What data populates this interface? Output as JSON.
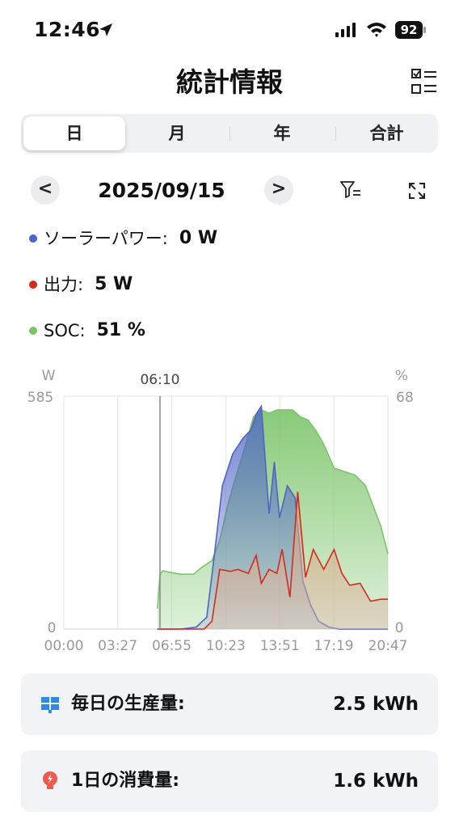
{
  "status_bar": {
    "time": "12:46",
    "battery": "92",
    "icons": [
      "location-arrow-icon",
      "cellular-signal-icon",
      "wifi-icon",
      "battery-icon"
    ]
  },
  "header": {
    "title": "統計情報",
    "action_icon": "checklist-icon"
  },
  "tabs": [
    {
      "label": "日",
      "active": true
    },
    {
      "label": "月",
      "active": false
    },
    {
      "label": "年",
      "active": false
    },
    {
      "label": "合計",
      "active": false
    }
  ],
  "date_nav": {
    "prev": "<",
    "date": "2025/09/15",
    "next": ">",
    "filter_icon": "filter-icon",
    "expand_icon": "expand-icon"
  },
  "legend": [
    {
      "label": "ソーラーパワー:",
      "value": "0 W",
      "color": "#4f63c7"
    },
    {
      "label": "出力:",
      "value": "5 W",
      "color": "#d22a1e"
    },
    {
      "label": "SOC:",
      "value": "51 %",
      "color": "#7cc46a"
    }
  ],
  "chart_data": {
    "type": "area",
    "left_axis": {
      "unit": "W",
      "max": "585",
      "min": "0",
      "range": [
        0,
        585
      ]
    },
    "right_axis": {
      "unit": "%",
      "max": "68",
      "min": "0",
      "range": [
        0,
        68
      ]
    },
    "x_ticks": [
      "00:00",
      "03:27",
      "06:55",
      "10:23",
      "13:51",
      "17:19",
      "20:47"
    ],
    "cursor_label": "06:10",
    "grid": true,
    "series": [
      {
        "name": "ソーラーパワー",
        "axis": "left",
        "color": "#4f63c7",
        "x": [
          "06:00",
          "07:30",
          "08:30",
          "09:10",
          "09:40",
          "10:10",
          "10:50",
          "11:30",
          "12:00",
          "12:20",
          "12:40",
          "13:10",
          "13:30",
          "13:50",
          "14:20",
          "14:50",
          "15:20",
          "15:50",
          "16:20",
          "17:00",
          "17:40",
          "20:47"
        ],
        "values": [
          0,
          0,
          5,
          30,
          190,
          360,
          440,
          480,
          500,
          540,
          560,
          290,
          420,
          280,
          360,
          330,
          120,
          60,
          20,
          5,
          0,
          0
        ]
      },
      {
        "name": "出力",
        "axis": "left",
        "color": "#d22a1e",
        "x": [
          "06:00",
          "09:00",
          "09:30",
          "10:00",
          "10:40",
          "11:10",
          "11:50",
          "12:20",
          "12:40",
          "13:10",
          "13:40",
          "14:00",
          "14:30",
          "15:00",
          "15:30",
          "16:00",
          "16:40",
          "17:20",
          "17:50",
          "18:20",
          "19:00",
          "19:40",
          "20:20",
          "20:47"
        ],
        "values": [
          0,
          0,
          20,
          150,
          145,
          150,
          140,
          185,
          115,
          150,
          140,
          200,
          80,
          345,
          130,
          200,
          150,
          200,
          140,
          110,
          115,
          70,
          75,
          75
        ]
      },
      {
        "name": "SOC",
        "axis": "right",
        "color": "#7cc46a",
        "x": [
          "06:00",
          "06:10",
          "06:20",
          "07:30",
          "08:20",
          "08:50",
          "09:30",
          "10:00",
          "10:30",
          "11:00",
          "11:40",
          "12:10",
          "12:40",
          "13:10",
          "13:40",
          "14:10",
          "14:40",
          "15:10",
          "15:40",
          "16:10",
          "16:40",
          "17:20",
          "18:00",
          "18:40",
          "19:20",
          "19:40",
          "20:00",
          "20:20",
          "20:47"
        ],
        "values": [
          6,
          16,
          17,
          16,
          16,
          18,
          20,
          26,
          36,
          44,
          54,
          62,
          64,
          63,
          64,
          64,
          64,
          62,
          61,
          58,
          54,
          47,
          46,
          45,
          42,
          38,
          34,
          30,
          22
        ]
      }
    ]
  },
  "stats": [
    {
      "icon": "solar-panel-icon",
      "label": "毎日の生産量:",
      "value": "2.5 kWh"
    },
    {
      "icon": "lightbulb-icon",
      "label": "1日の消費量:",
      "value": "1.6 kWh"
    }
  ]
}
